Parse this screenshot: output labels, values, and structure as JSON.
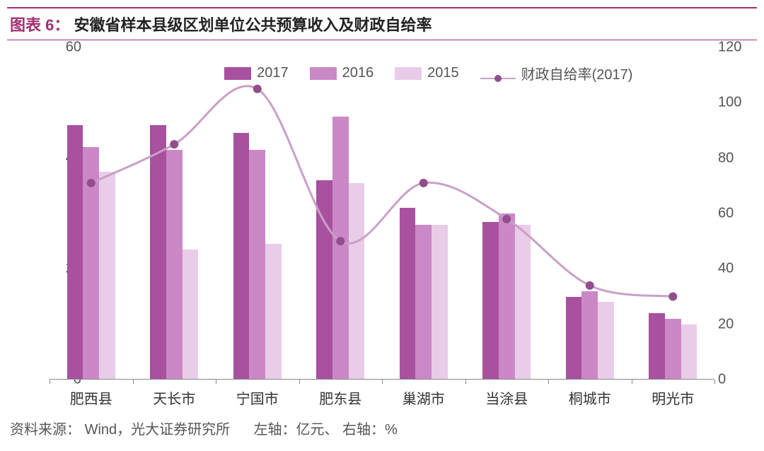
{
  "title": {
    "prefix": "图表 6：",
    "main": "安徽省样本县级区划单位公共预算收入及财政自给率"
  },
  "chart": {
    "type": "bar+line",
    "categories": [
      "肥西县",
      "天长市",
      "宁国市",
      "肥东县",
      "巢湖市",
      "当涂县",
      "桐城市",
      "明光市"
    ],
    "left_axis": {
      "min": 0,
      "max": 60,
      "step": 20,
      "label": "亿元"
    },
    "right_axis": {
      "min": 0,
      "max": 120,
      "step": 20,
      "label": "%"
    },
    "series_bars": [
      {
        "name": "2017",
        "color": "#a8519f",
        "values": [
          46,
          46,
          44.5,
          36,
          31,
          28.5,
          15,
          12
        ]
      },
      {
        "name": "2016",
        "color": "#cb88c6",
        "values": [
          42,
          41.5,
          41.5,
          47.5,
          28,
          30,
          16,
          11
        ]
      },
      {
        "name": "2015",
        "color": "#e9cce7",
        "values": [
          37.5,
          23.5,
          24.5,
          35.5,
          28,
          28,
          14,
          10
        ]
      }
    ],
    "series_line": {
      "name": "财政自给率(2017)",
      "color": "#c9a0c8",
      "dot_color": "#914d8c",
      "values": [
        71,
        85,
        105,
        50,
        71,
        58,
        34,
        30
      ]
    },
    "bar_group_width_ratio": 0.58,
    "background": "#ffffff",
    "axis_color": "#888888",
    "tick_fontsize": 20,
    "label_fontsize": 20
  },
  "legend": {
    "items": [
      {
        "type": "bar",
        "label": "2017",
        "color": "#a8519f"
      },
      {
        "type": "bar",
        "label": "2016",
        "color": "#cb88c6"
      },
      {
        "type": "bar",
        "label": "2015",
        "color": "#e9cce7"
      },
      {
        "type": "line",
        "label": "财政自给率(2017)",
        "line_color": "#c9a0c8",
        "dot_color": "#914d8c"
      }
    ]
  },
  "footer": {
    "source_prefix": "资料来源：",
    "source": "Wind，光大证券研究所",
    "left_axis_label": "左轴：亿元、",
    "right_axis_label": "右轴：%"
  }
}
